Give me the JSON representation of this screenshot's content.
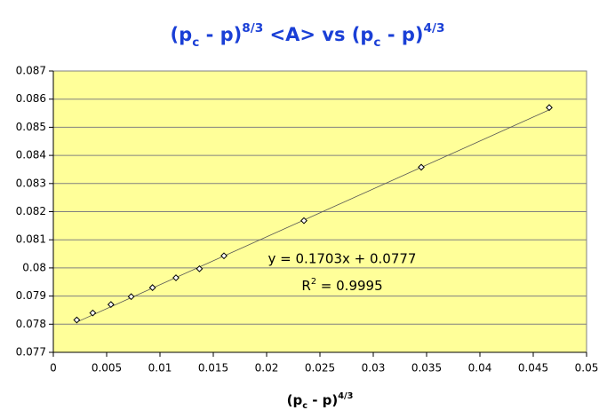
{
  "chart_data": {
    "type": "scatter",
    "title_parts": [
      {
        "text": "(p"
      },
      {
        "text": "c",
        "style": "sub"
      },
      {
        "text": " - p)"
      },
      {
        "text": "8/3",
        "style": "sup"
      },
      {
        "text": " <A> vs (p"
      },
      {
        "text": "c",
        "style": "sub"
      },
      {
        "text": " - p)"
      },
      {
        "text": "4/3",
        "style": "sup"
      }
    ],
    "x_label_parts": [
      {
        "text": "(p"
      },
      {
        "text": "c",
        "style": "sub"
      },
      {
        "text": " - p)"
      },
      {
        "text": "4/3",
        "style": "sup"
      }
    ],
    "x": [
      0.0022,
      0.0037,
      0.0054,
      0.0073,
      0.0093,
      0.0115,
      0.0137,
      0.016,
      0.0235,
      0.0345,
      0.0465
    ],
    "values": [
      0.07815,
      0.0784,
      0.0787,
      0.07898,
      0.0793,
      0.07965,
      0.07997,
      0.08043,
      0.08168,
      0.08358,
      0.0857
    ],
    "xlim": [
      0,
      0.05
    ],
    "xticks": [
      0,
      0.005,
      0.01,
      0.015,
      0.02,
      0.025,
      0.03,
      0.035,
      0.04,
      0.045,
      0.05
    ],
    "ylim": [
      0.077,
      0.087
    ],
    "yticks": [
      0.077,
      0.078,
      0.079,
      0.08,
      0.081,
      0.082,
      0.083,
      0.084,
      0.085,
      0.086,
      0.087
    ],
    "grid": true,
    "plot_color": "#ffff99",
    "title_color": "#1a3fd6",
    "trendline": {
      "slope": 0.1703,
      "intercept": 0.0777,
      "equation": "y = 0.1703x + 0.0777",
      "r_squared_parts": [
        {
          "text": "R"
        },
        {
          "text": "2",
          "style": "sup"
        },
        {
          "text": " = 0.9995"
        }
      ]
    }
  }
}
